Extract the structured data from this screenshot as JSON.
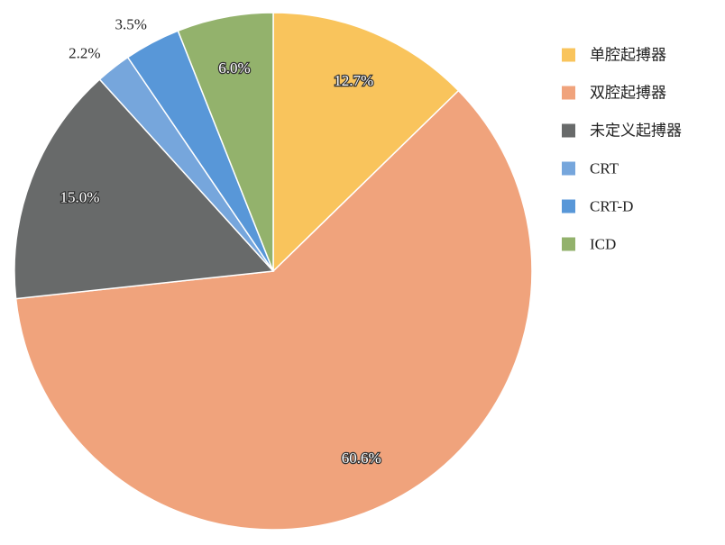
{
  "chart_data": {
    "type": "pie",
    "title": "",
    "legend_position": "right",
    "slices": [
      {
        "name": "单腔起搏器",
        "value": 12.7,
        "label": "12.7%",
        "color": "#f9c45c",
        "label_style": "inside"
      },
      {
        "name": "双腔起搏器",
        "value": 60.6,
        "label": "60.6%",
        "color": "#f0a37c",
        "label_style": "inside"
      },
      {
        "name": "未定义起搏器",
        "value": 15.0,
        "label": "15.0%",
        "color": "#686a6a",
        "label_style": "inside"
      },
      {
        "name": "CRT",
        "value": 2.2,
        "label": "2.2%",
        "color": "#76a6dc",
        "label_style": "outside"
      },
      {
        "name": "CRT-D",
        "value": 3.5,
        "label": "3.5%",
        "color": "#5897d8",
        "label_style": "outside"
      },
      {
        "name": "ICD",
        "value": 6.0,
        "label": "6.0%",
        "color": "#93b26c",
        "label_style": "inside"
      }
    ]
  }
}
